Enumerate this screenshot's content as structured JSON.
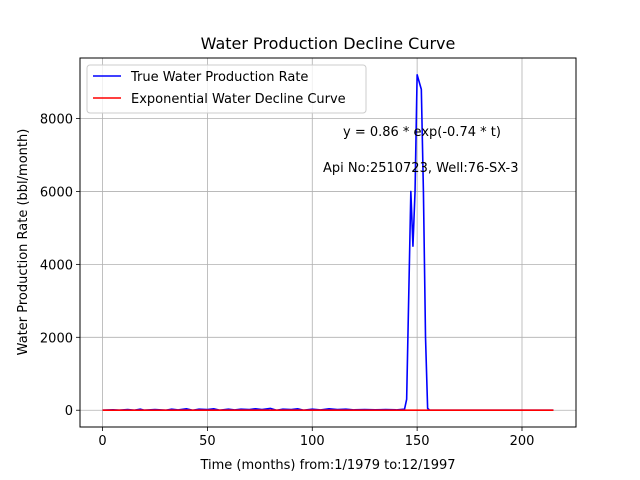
{
  "chart_data": {
    "type": "line",
    "title": "Water Production Decline Curve",
    "xlabel": "Time (months) from:1/1979 to:12/1997",
    "ylabel": "Water Production Rate (bbl/month)",
    "xlim": [
      -10.75,
      225.75
    ],
    "ylim": [
      -460,
      9660
    ],
    "xticks": [
      0,
      50,
      100,
      150,
      200
    ],
    "yticks": [
      0,
      2000,
      4000,
      6000,
      8000
    ],
    "grid": true,
    "legend_position": "top-left",
    "annotations": [
      {
        "text": "y = 0.86 * exp(-0.74 * t)",
        "x": 115,
        "y": 7600
      },
      {
        "text": "Api No:2510723, Well:76-SX-3",
        "x": 105,
        "y": 6600
      }
    ],
    "series": [
      {
        "name": "True Water Production Rate",
        "color": "#0000ff",
        "x": [
          0,
          5,
          8,
          12,
          15,
          18,
          20,
          25,
          30,
          33,
          36,
          40,
          43,
          46,
          50,
          53,
          56,
          60,
          63,
          66,
          70,
          73,
          76,
          80,
          83,
          86,
          90,
          93,
          96,
          100,
          104,
          108,
          112,
          116,
          120,
          125,
          130,
          135,
          140,
          144,
          145,
          147,
          148,
          149,
          150,
          152,
          153,
          154,
          155,
          156,
          160,
          170,
          180,
          190,
          200,
          210,
          215
        ],
        "y": [
          0,
          10,
          0,
          20,
          0,
          30,
          0,
          20,
          0,
          30,
          10,
          40,
          0,
          30,
          20,
          40,
          0,
          30,
          10,
          30,
          20,
          40,
          20,
          50,
          0,
          30,
          20,
          40,
          0,
          30,
          10,
          40,
          20,
          30,
          10,
          20,
          10,
          20,
          10,
          30,
          300,
          6000,
          4500,
          6000,
          9200,
          8800,
          6000,
          2000,
          50,
          0,
          0,
          0,
          0,
          0,
          0,
          0,
          0
        ]
      },
      {
        "name": "Exponential Water Decline Curve",
        "color": "#ff0000",
        "x": [
          0,
          215
        ],
        "y": [
          0.86,
          0
        ]
      }
    ]
  }
}
